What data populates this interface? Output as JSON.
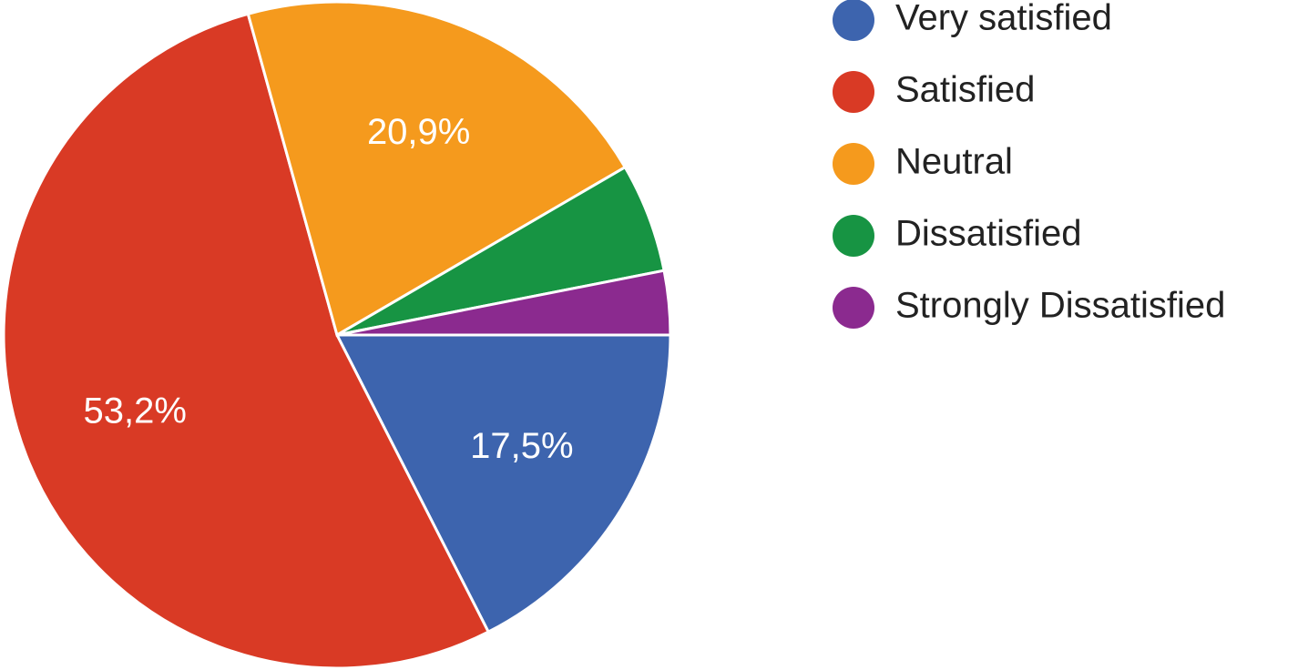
{
  "chart_data": {
    "type": "pie",
    "categories": [
      "Very satisfied",
      "Satisfied",
      "Neutral",
      "Dissatisfied",
      "Strongly Dissatisfied"
    ],
    "values": [
      17.5,
      53.2,
      20.9,
      5.3,
      3.1
    ],
    "value_labels": [
      "17,5%",
      "53,2%",
      "20,9%",
      null,
      null
    ],
    "colors": [
      "#3d64ae",
      "#d93a25",
      "#f59a1d",
      "#179443",
      "#8b2a8f"
    ],
    "legend": "right"
  }
}
